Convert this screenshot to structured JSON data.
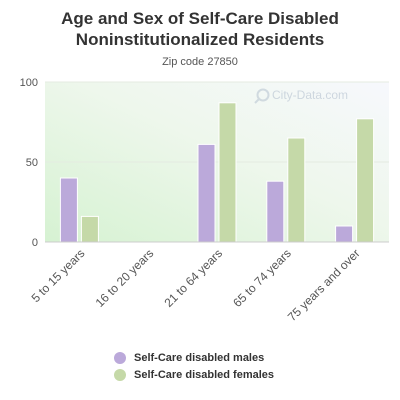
{
  "chart_data": {
    "type": "bar",
    "title_line1": "Age and Sex of Self-Care Disabled",
    "title_line2": "Noninstitutionalized Residents",
    "subtitle": "Zip code 27850",
    "watermark": "City-Data.com",
    "categories": [
      "5 to 15 years",
      "16 to 20 years",
      "21 to 64 years",
      "65 to 74 years",
      "75 years and over"
    ],
    "series": [
      {
        "name": "Self-Care disabled males",
        "color": "#bba9da",
        "values": [
          40,
          0,
          61,
          38,
          10
        ]
      },
      {
        "name": "Self-Care disabled females",
        "color": "#c5d9a8",
        "values": [
          16,
          0,
          87,
          65,
          77
        ]
      }
    ],
    "ylim": [
      0,
      100
    ],
    "yticks": [
      0,
      50,
      100
    ],
    "grid": true,
    "legend_position": "bottom"
  }
}
